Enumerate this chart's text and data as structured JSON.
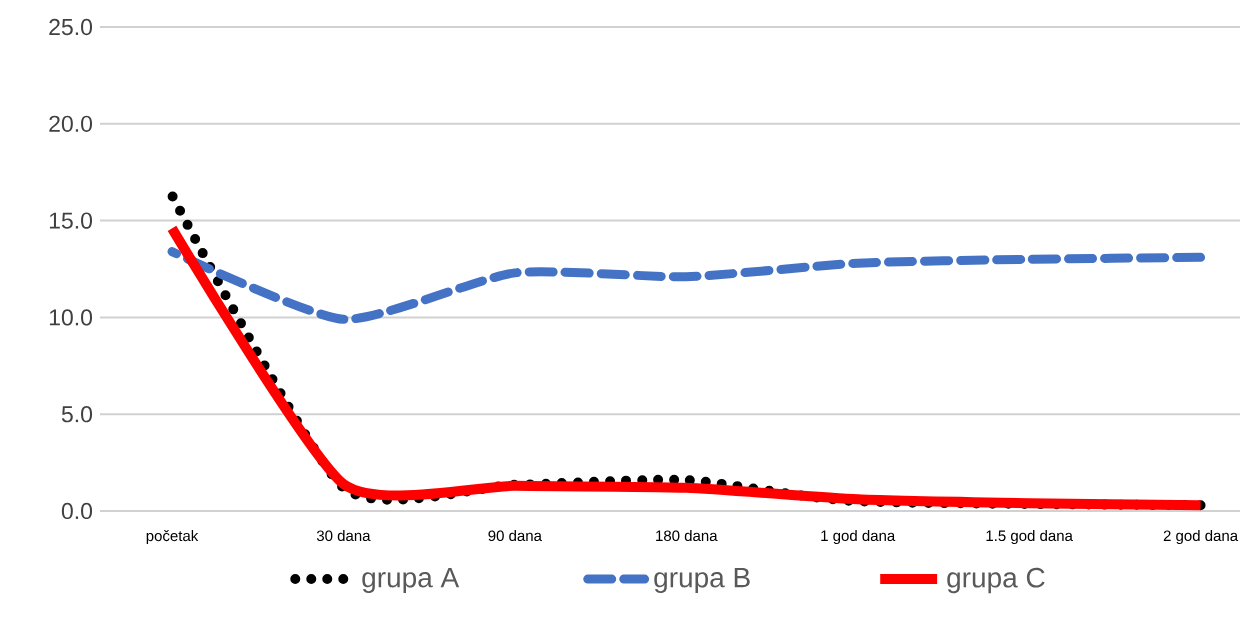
{
  "chart_data": {
    "type": "line",
    "categories": [
      "početak",
      "30 dana",
      "90 dana",
      "180 dana",
      "1 god dana",
      "1.5 god dana",
      "2 god dana"
    ],
    "series": [
      {
        "name": "grupa A",
        "color": "#000000",
        "line_style": "dotted",
        "values": [
          16.3,
          1.2,
          1.35,
          1.6,
          0.5,
          null,
          0.3
        ]
      },
      {
        "name": "grupa B",
        "color": "#4472c4",
        "line_style": "dashed",
        "values": [
          13.4,
          9.9,
          12.3,
          12.1,
          12.8,
          13.0,
          13.1
        ]
      },
      {
        "name": "grupa C",
        "color": "#ff0000",
        "line_style": "solid",
        "values": [
          14.6,
          1.4,
          1.3,
          1.2,
          0.6,
          0.4,
          0.3
        ]
      }
    ],
    "ylim": [
      0,
      25
    ],
    "yticks": [
      {
        "value": 0,
        "label": "0.0"
      },
      {
        "value": 5,
        "label": "5.0"
      },
      {
        "value": 10,
        "label": "10.0"
      },
      {
        "value": 15,
        "label": "15.0"
      },
      {
        "value": 20,
        "label": "20.0"
      },
      {
        "value": 25,
        "label": "25.0"
      }
    ],
    "grid": "y",
    "legend": "bottom"
  }
}
